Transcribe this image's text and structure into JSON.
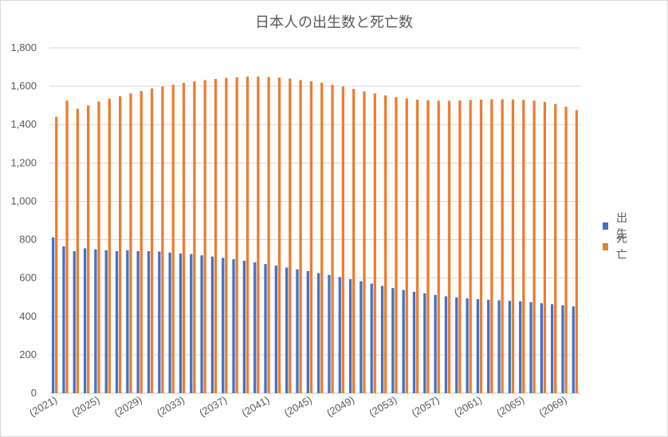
{
  "chart_data": {
    "type": "bar",
    "title": "日本人の出生数と死亡数",
    "xlabel": "",
    "ylabel": "",
    "ylim": [
      0,
      1800
    ],
    "yticks": [
      "0",
      "200",
      "400",
      "600",
      "800",
      "1,000",
      "1,200",
      "1,400",
      "1,600",
      "1,800"
    ],
    "categories": [
      2021,
      2022,
      2023,
      2024,
      2025,
      2026,
      2027,
      2028,
      2029,
      2030,
      2031,
      2032,
      2033,
      2034,
      2035,
      2036,
      2037,
      2038,
      2039,
      2040,
      2041,
      2042,
      2043,
      2044,
      2045,
      2046,
      2047,
      2048,
      2049,
      2050,
      2051,
      2052,
      2053,
      2054,
      2055,
      2056,
      2057,
      2058,
      2059,
      2060,
      2061,
      2062,
      2063,
      2064,
      2065,
      2066,
      2067,
      2068,
      2069,
      2070
    ],
    "xtick_labels": [
      "(2021)",
      "(2025)",
      "(2029)",
      "(2033)",
      "(2037)",
      "(2041)",
      "(2045)",
      "(2049)",
      "(2053)",
      "(2057)",
      "(2061)",
      "(2065)",
      "(2069)"
    ],
    "grid": true,
    "legend_position": "right",
    "series": [
      {
        "name": "出　生",
        "color": "#4472C4",
        "values": [
          812,
          765,
          740,
          755,
          750,
          745,
          740,
          745,
          740,
          740,
          738,
          733,
          728,
          725,
          718,
          712,
          705,
          698,
          690,
          682,
          673,
          665,
          655,
          645,
          636,
          626,
          616,
          605,
          594,
          583,
          571,
          559,
          548,
          538,
          528,
          520,
          512,
          505,
          499,
          494,
          490,
          487,
          484,
          481,
          478,
          474,
          469,
          464,
          458,
          452
        ]
      },
      {
        "name": "死　亡",
        "color": "#ED7D31",
        "values": [
          1440,
          1525,
          1482,
          1500,
          1520,
          1535,
          1548,
          1562,
          1575,
          1588,
          1598,
          1608,
          1618,
          1625,
          1632,
          1638,
          1643,
          1647,
          1650,
          1650,
          1648,
          1645,
          1640,
          1632,
          1625,
          1618,
          1608,
          1598,
          1585,
          1573,
          1562,
          1552,
          1543,
          1536,
          1530,
          1527,
          1524,
          1524,
          1526,
          1528,
          1530,
          1532,
          1532,
          1531,
          1529,
          1525,
          1518,
          1508,
          1493,
          1475
        ]
      }
    ]
  }
}
